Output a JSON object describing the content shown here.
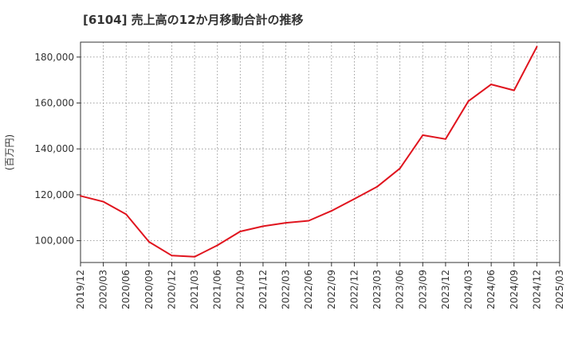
{
  "chart_data": {
    "type": "line",
    "title": "[6104]  売上高の12か月移動合計の推移",
    "ylabel": "(百万円)",
    "xlabel": "",
    "grid": true,
    "ylim": [
      90500,
      186500
    ],
    "yticks": [
      100000,
      120000,
      140000,
      160000,
      180000
    ],
    "ytick_labels": [
      "100,000",
      "120,000",
      "140,000",
      "160,000",
      "180,000"
    ],
    "categories": [
      "2019/12",
      "2020/03",
      "2020/06",
      "2020/09",
      "2020/12",
      "2021/03",
      "2021/06",
      "2021/09",
      "2021/12",
      "2022/03",
      "2022/06",
      "2022/09",
      "2022/12",
      "2023/03",
      "2023/06",
      "2023/09",
      "2023/12",
      "2024/03",
      "2024/06",
      "2024/09",
      "2024/12",
      "2025/03"
    ],
    "series": [
      {
        "name": "売上高(12か月移動合計)",
        "color": "#e0141e",
        "values": [
          119500,
          117000,
          111500,
          99500,
          93500,
          93000,
          98000,
          104000,
          106300,
          107800,
          108700,
          113000,
          118200,
          123500,
          131500,
          146000,
          144300,
          160800,
          168100,
          165500,
          184500,
          null
        ]
      }
    ]
  }
}
